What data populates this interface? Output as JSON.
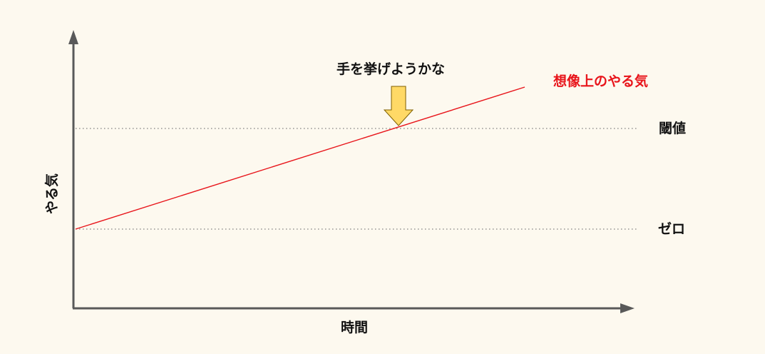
{
  "diagram": {
    "annotation": "手を挙げようかな",
    "line_label": "想像上のやる気",
    "threshold_label": "閾値",
    "zero_label": "ゼロ",
    "x_axis_label": "時間",
    "y_axis_label": "やる気"
  },
  "colors": {
    "background": "#FDF9EF",
    "axis": "#595959",
    "line": "#E8141A",
    "arrow_fill": "#FFD966",
    "arrow_stroke": "#7F6000",
    "dotted": "#7F7F7F"
  }
}
